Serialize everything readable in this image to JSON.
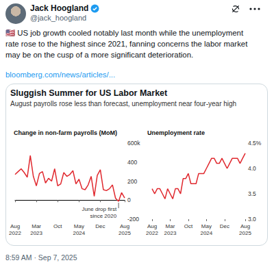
{
  "tweet": {
    "name": "Jack Hoogland",
    "handle": "@jack_hoogland",
    "text_lines": [
      "🇺🇸 US job growth cooled notably last month while the unemployment",
      "rate rose to the highest since 2021, fanning concerns the labor market",
      "may be on the cusp of a more significant deterioration."
    ],
    "link": "bloomberg.com/news/articles/...",
    "timestamp": "8:59 AM · Sep 7, 2025"
  },
  "figure": {
    "title": "Sluggish Summer for US Labor Market",
    "subtitle": "August payrolls rose less than forecast, unemployment near four-year high"
  },
  "chart_data": [
    {
      "type": "line",
      "title": "Change in non-farm payrolls (MoM)",
      "categories": [
        "Aug\n2022",
        null,
        null,
        null,
        null,
        null,
        null,
        "Mar\n2023",
        null,
        null,
        null,
        null,
        null,
        null,
        "Oct",
        null,
        null,
        null,
        null,
        null,
        null,
        "May\n2024",
        null,
        null,
        null,
        null,
        null,
        null,
        "Dec",
        null,
        null,
        null,
        null,
        null,
        null,
        null,
        "Aug\n2025"
      ],
      "values": [
        270,
        300,
        330,
        290,
        240,
        470,
        250,
        150,
        280,
        300,
        180,
        230,
        200,
        330,
        150,
        170,
        290,
        250,
        270,
        310,
        170,
        220,
        120,
        110,
        160,
        250,
        40,
        260,
        320,
        110,
        100,
        120,
        160,
        20,
        -13,
        79,
        22
      ],
      "color": "#e0282e",
      "ylim": [
        -200,
        600
      ],
      "yticks": [
        -200,
        0,
        200,
        400,
        {
          "value": 600,
          "label": "600k"
        }
      ],
      "grid": false,
      "annotation": "June drop first\nsince 2020"
    },
    {
      "type": "line",
      "title": "Unemployment rate",
      "categories": [
        "Aug\n2022",
        null,
        null,
        null,
        null,
        null,
        null,
        "Mar\n2023",
        null,
        null,
        null,
        null,
        null,
        null,
        "Oct",
        null,
        null,
        null,
        null,
        null,
        null,
        "May\n2024",
        null,
        null,
        null,
        null,
        null,
        null,
        "Dec",
        null,
        null,
        null,
        null,
        null,
        null,
        null,
        "Aug\n2025"
      ],
      "values": [
        3.6,
        3.5,
        3.6,
        3.6,
        3.5,
        3.4,
        3.6,
        3.5,
        3.4,
        3.6,
        3.6,
        3.5,
        3.8,
        3.8,
        3.9,
        3.7,
        3.7,
        3.7,
        3.9,
        3.9,
        3.9,
        4.0,
        4.1,
        4.2,
        4.2,
        4.1,
        4.1,
        4.2,
        4.1,
        4.0,
        4.1,
        4.2,
        4.2,
        4.2,
        4.1,
        4.2,
        4.3
      ],
      "color": "#e0282e",
      "ylim": [
        3,
        4.5
      ],
      "yticks": [
        {
          "value": 3,
          "label": "3.0"
        },
        3.5,
        {
          "value": 4,
          "label": "4.0"
        },
        {
          "value": 4.5,
          "label": "4.5%"
        }
      ],
      "grid": false
    }
  ]
}
